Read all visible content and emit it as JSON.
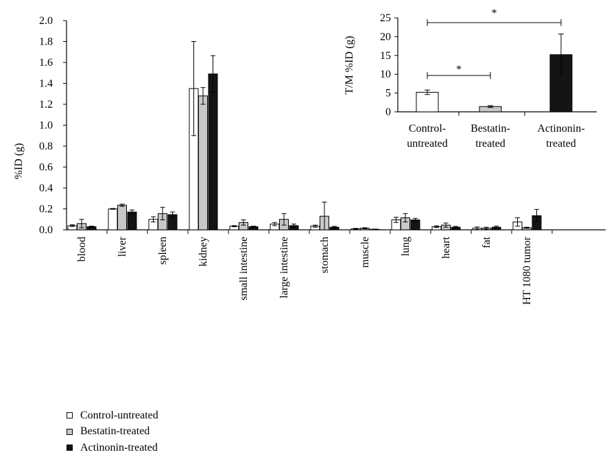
{
  "colors": {
    "Control-untreated": "#ffffff",
    "Bestatin-treated": "#c8c8c8",
    "Actinonin-treated": "#141414"
  },
  "legend": [
    {
      "label": "Control-untreated",
      "color_key": "Control-untreated"
    },
    {
      "label": "Bestatin-treated",
      "color_key": "Bestatin-treated"
    },
    {
      "label": "Actinonin-treated",
      "color_key": "Actinonin-treated"
    }
  ],
  "chart_data": [
    {
      "type": "bar",
      "title": "",
      "xlabel": "",
      "ylabel": "%ID (g)",
      "ylim": [
        0,
        2.0
      ],
      "yticks": [
        "0.0",
        "0.2",
        "0.4",
        "0.6",
        "0.8",
        "1.0",
        "1.2",
        "1.4",
        "1.6",
        "1.8",
        "2.0"
      ],
      "grid": false,
      "legend_position": "bottom-left",
      "categories": [
        "blood",
        "liver",
        "spleen",
        "kidney",
        "small intestine",
        "large intestine",
        "stomach",
        "muscle",
        "lung",
        "heart",
        "fat",
        "HT 1080 tumor"
      ],
      "series": [
        {
          "name": "Control-untreated",
          "values": [
            0.04,
            0.2,
            0.1,
            1.35,
            0.035,
            0.055,
            0.035,
            0.01,
            0.095,
            0.03,
            0.015,
            0.075
          ],
          "errors": [
            0.008,
            0.004,
            0.025,
            0.45,
            0.005,
            0.015,
            0.01,
            0.004,
            0.025,
            0.008,
            0.012,
            0.04
          ]
        },
        {
          "name": "Bestatin-treated",
          "values": [
            0.06,
            0.235,
            0.155,
            1.28,
            0.07,
            0.1,
            0.13,
            0.015,
            0.115,
            0.045,
            0.015,
            0.02
          ],
          "errors": [
            0.04,
            0.01,
            0.06,
            0.08,
            0.025,
            0.055,
            0.135,
            0.005,
            0.04,
            0.02,
            0.01,
            0.005
          ]
        },
        {
          "name": "Actinonin-treated",
          "values": [
            0.03,
            0.17,
            0.145,
            1.49,
            0.03,
            0.04,
            0.025,
            0.005,
            0.095,
            0.025,
            0.025,
            0.135
          ],
          "errors": [
            0.005,
            0.02,
            0.025,
            0.175,
            0.005,
            0.015,
            0.008,
            0.002,
            0.015,
            0.008,
            0.01,
            0.06
          ]
        }
      ]
    },
    {
      "type": "bar",
      "title": "",
      "xlabel": "",
      "ylabel": "T/M %ID (g)",
      "ylim": [
        0,
        25
      ],
      "yticks": [
        "0",
        "5",
        "10",
        "15",
        "20",
        "25"
      ],
      "grid": false,
      "categories": [
        "Control-untreated",
        "Bestatin-treated",
        "Actinonin-treated"
      ],
      "category_lines": [
        [
          "Control-",
          "untreated"
        ],
        [
          "Bestatin-",
          "treated"
        ],
        [
          "Actinonin-",
          "treated"
        ]
      ],
      "values": [
        5.2,
        1.4,
        15.2
      ],
      "errors": [
        0.6,
        0.25,
        5.5
      ],
      "color_keys": [
        "Control-untreated",
        "Bestatin-treated",
        "Actinonin-treated"
      ],
      "significance": [
        {
          "from": "Control-untreated",
          "to": "Bestatin-treated",
          "label": "*"
        },
        {
          "from": "Control-untreated",
          "to": "Actinonin-treated",
          "label": "*"
        }
      ]
    }
  ]
}
